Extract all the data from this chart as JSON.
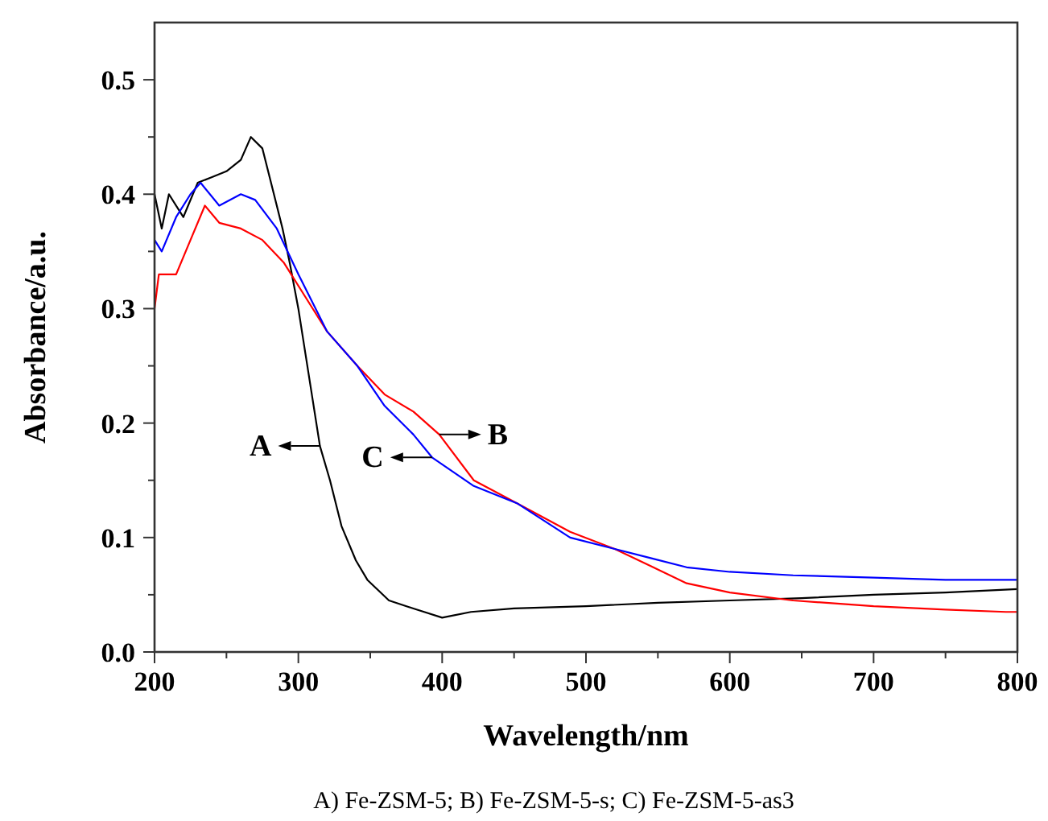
{
  "chart_data": {
    "type": "line",
    "xlabel": "Wavelength/nm",
    "ylabel": "Absorbance/a.u.",
    "xlim": [
      200,
      800
    ],
    "ylim": [
      0,
      0.55
    ],
    "xticks": [
      200,
      {
        "value": 250,
        "label": null
      },
      300,
      {
        "value": 350,
        "label": null
      },
      400,
      {
        "value": 450,
        "label": null
      },
      500,
      {
        "value": 550,
        "label": null
      },
      600,
      {
        "value": 650,
        "label": null
      },
      700,
      {
        "value": 750,
        "label": null
      },
      800
    ],
    "yticks": [
      {
        "value": 0,
        "label": "0.0"
      },
      {
        "value": 0.05,
        "label": null
      },
      0.1,
      {
        "value": 0.15,
        "label": null
      },
      0.2,
      {
        "value": 0.25,
        "label": null
      },
      0.3,
      {
        "value": 0.35,
        "label": null
      },
      0.4,
      {
        "value": 0.45,
        "label": null
      },
      0.5
    ],
    "grid": false,
    "marker": "none",
    "line_style": "solid",
    "series": [
      {
        "color": "#000000",
        "x": [
          200,
          205,
          210,
          220,
          230,
          240,
          250,
          260,
          267,
          275,
          281,
          289,
          294,
          300,
          305,
          310,
          315,
          322,
          330,
          340,
          348,
          363,
          380,
          400,
          420,
          450,
          500,
          550,
          600,
          650,
          700,
          750,
          800
        ],
        "values": [
          0.4,
          0.37,
          0.4,
          0.38,
          0.41,
          0.415,
          0.42,
          0.43,
          0.45,
          0.44,
          0.41,
          0.37,
          0.34,
          0.3,
          0.26,
          0.22,
          0.18,
          0.15,
          0.11,
          0.08,
          0.063,
          0.045,
          0.038,
          0.03,
          0.035,
          0.038,
          0.04,
          0.043,
          0.045,
          0.047,
          0.05,
          0.052,
          0.055
        ]
      },
      {
        "color": "#ff0000",
        "x": [
          200,
          203,
          215,
          225,
          235,
          245,
          260,
          275,
          290,
          305,
          320,
          341,
          360,
          380,
          398,
          422,
          452,
          489,
          520,
          545,
          570,
          600,
          644,
          700,
          750,
          792,
          800
        ],
        "values": [
          0.3,
          0.33,
          0.33,
          0.36,
          0.39,
          0.375,
          0.37,
          0.36,
          0.34,
          0.31,
          0.28,
          0.25,
          0.225,
          0.21,
          0.19,
          0.15,
          0.13,
          0.105,
          0.09,
          0.075,
          0.06,
          0.052,
          0.045,
          0.04,
          0.037,
          0.035,
          0.035
        ]
      },
      {
        "color": "#0000ff",
        "x": [
          200,
          205,
          215,
          225,
          232,
          245,
          260,
          270,
          285,
          300,
          320,
          341,
          360,
          380,
          393,
          422,
          452,
          489,
          520,
          545,
          570,
          600,
          644,
          700,
          750,
          800
        ],
        "values": [
          0.36,
          0.35,
          0.38,
          0.4,
          0.41,
          0.39,
          0.4,
          0.395,
          0.37,
          0.33,
          0.28,
          0.25,
          0.215,
          0.19,
          0.17,
          0.145,
          0.13,
          0.1,
          0.09,
          0.082,
          0.074,
          0.07,
          0.067,
          0.065,
          0.063,
          0.063
        ]
      }
    ],
    "annotations": [
      {
        "text": "A",
        "x": 315,
        "y": 0.18
      },
      {
        "text": "B",
        "x": 398,
        "y": 0.19
      },
      {
        "text": "C",
        "x": 393,
        "y": 0.17
      },
      "A) Fe-ZSM-5; B) Fe-ZSM-5-s; C) Fe-ZSM-5-as3"
    ]
  }
}
